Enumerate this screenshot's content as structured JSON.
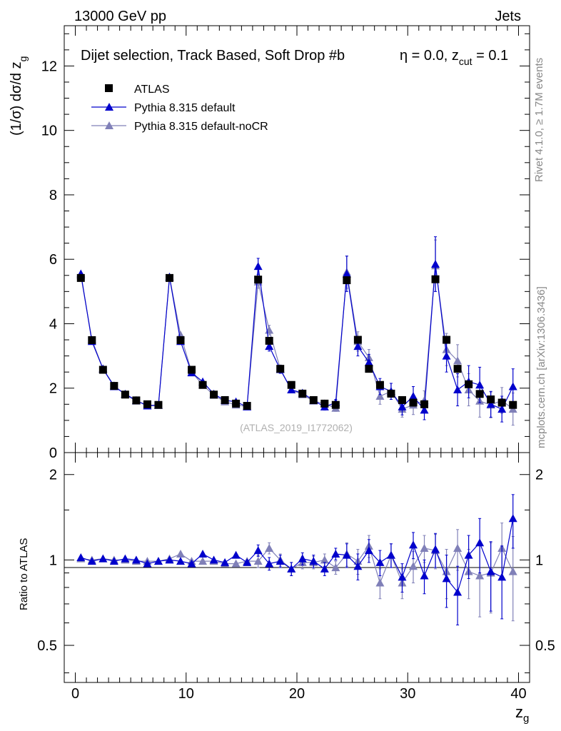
{
  "header": {
    "left": "13000 GeV pp",
    "right": "Jets"
  },
  "title_main": "Dijet selection, Track Based, Soft Drop #b",
  "title_eta": "η = 0.0, z",
  "title_cut_sub": "cut",
  "title_cut_val": " = 0.1",
  "side_top": "Rivet 4.1.0, ≥ 1.7M events",
  "side_bottom": "mcplots.cern.ch [arXiv:1306.3436]",
  "watermark": "(ATLAS_2019_I1772062)",
  "ylabel_main": "(1/σ) dσ/d z",
  "ylabel_main_sub": "g",
  "ylabel_ratio": "Ratio to ATLAS",
  "xlabel": "z",
  "xlabel_sub": "g",
  "legend": {
    "atlas": "ATLAS",
    "pythia": "Pythia 8.315 default",
    "nocr": "Pythia 8.315 default-noCR"
  },
  "colors": {
    "atlas": "#000000",
    "pythia": "#0000cc",
    "nocr": "#8080b8"
  },
  "chart_data": {
    "type": "scatter",
    "x": [
      0.5,
      1.5,
      2.5,
      3.5,
      4.5,
      5.5,
      6.5,
      7.5,
      8.5,
      9.5,
      10.5,
      11.5,
      12.5,
      13.5,
      14.5,
      15.5,
      16.5,
      17.5,
      18.5,
      19.5,
      20.5,
      21.5,
      22.5,
      23.5,
      24.5,
      25.5,
      26.5,
      27.5,
      28.5,
      29.5,
      30.5,
      31.5,
      32.5,
      33.5,
      34.5,
      35.5,
      36.5,
      37.5,
      38.5,
      39.5
    ],
    "xlim": [
      -1,
      41
    ],
    "xticks": [
      0,
      10,
      20,
      30,
      40
    ],
    "main": {
      "ylim": [
        0,
        13.25
      ],
      "yticks": [
        0,
        2,
        4,
        6,
        8,
        10,
        12
      ],
      "series": [
        {
          "name": "ATLAS",
          "values": [
            5.42,
            3.49,
            2.57,
            2.07,
            1.8,
            1.62,
            1.5,
            1.48,
            5.42,
            3.49,
            2.57,
            2.1,
            1.8,
            1.63,
            1.52,
            1.45,
            5.37,
            3.47,
            2.6,
            2.1,
            1.83,
            1.63,
            1.52,
            1.48,
            5.35,
            3.5,
            2.6,
            2.1,
            1.83,
            1.63,
            1.55,
            1.5,
            5.38,
            3.5,
            2.6,
            2.12,
            1.82,
            1.65,
            1.55,
            1.48
          ],
          "errors": [
            0.03,
            0.03,
            0.03,
            0.03,
            0.03,
            0.03,
            0.03,
            0.03,
            0.03,
            0.03,
            0.03,
            0.03,
            0.03,
            0.03,
            0.03,
            0.03,
            0.05,
            0.05,
            0.05,
            0.05,
            0.05,
            0.05,
            0.05,
            0.05,
            0.08,
            0.08,
            0.08,
            0.08,
            0.08,
            0.08,
            0.08,
            0.08,
            0.1,
            0.1,
            0.1,
            0.1,
            0.1,
            0.1,
            0.1,
            0.1
          ]
        },
        {
          "name": "Pythia 8.315 default",
          "values": [
            5.55,
            3.45,
            2.6,
            2.05,
            1.82,
            1.62,
            1.45,
            1.47,
            5.45,
            3.45,
            2.48,
            2.2,
            1.82,
            1.62,
            1.58,
            1.42,
            5.78,
            3.3,
            2.58,
            1.95,
            1.85,
            1.62,
            1.42,
            1.55,
            5.55,
            3.3,
            2.8,
            2.05,
            1.9,
            1.42,
            1.75,
            1.32,
            5.85,
            3.0,
            1.95,
            2.2,
            2.1,
            1.5,
            1.35,
            2.05
          ],
          "errors": [
            0.03,
            0.03,
            0.03,
            0.03,
            0.03,
            0.03,
            0.03,
            0.03,
            0.04,
            0.04,
            0.04,
            0.04,
            0.04,
            0.04,
            0.04,
            0.04,
            0.25,
            0.15,
            0.12,
            0.1,
            0.08,
            0.08,
            0.1,
            0.1,
            0.55,
            0.3,
            0.25,
            0.25,
            0.25,
            0.25,
            0.3,
            0.3,
            0.85,
            0.5,
            0.5,
            0.5,
            0.55,
            0.4,
            0.4,
            0.55
          ]
        },
        {
          "name": "Pythia 8.315 default-noCR",
          "values": [
            5.5,
            3.5,
            2.6,
            2.08,
            1.8,
            1.6,
            1.48,
            1.47,
            5.45,
            3.65,
            2.5,
            2.1,
            1.78,
            1.58,
            1.48,
            1.43,
            5.3,
            3.8,
            2.6,
            1.95,
            1.8,
            1.6,
            1.52,
            1.38,
            5.6,
            3.45,
            2.95,
            1.75,
            1.9,
            1.35,
            1.48,
            1.62,
            5.8,
            3.2,
            2.85,
            1.95,
            1.6,
            1.48,
            1.62,
            1.35
          ],
          "errors": [
            0.03,
            0.03,
            0.03,
            0.03,
            0.03,
            0.03,
            0.03,
            0.03,
            0.04,
            0.04,
            0.04,
            0.04,
            0.04,
            0.04,
            0.04,
            0.04,
            0.2,
            0.15,
            0.12,
            0.1,
            0.08,
            0.08,
            0.1,
            0.1,
            0.5,
            0.3,
            0.25,
            0.25,
            0.25,
            0.25,
            0.3,
            0.3,
            0.8,
            0.5,
            0.5,
            0.5,
            0.5,
            0.4,
            0.4,
            0.5
          ]
        }
      ]
    },
    "ratio": {
      "ylim": [
        0.37,
        2.39
      ],
      "yticks": [
        0.5,
        1,
        2
      ],
      "ytick_labels": [
        "0.5",
        "1",
        "2"
      ],
      "series": [
        {
          "name": "Pythia 8.315 default",
          "values": [
            1.02,
            0.99,
            1.01,
            0.99,
            1.01,
            1.0,
            0.97,
            0.99,
            1.0,
            0.99,
            0.97,
            1.05,
            1.0,
            0.98,
            1.04,
            0.98,
            1.08,
            0.97,
            0.99,
            0.93,
            1.01,
            0.99,
            0.93,
            1.05,
            1.04,
            0.95,
            1.08,
            0.98,
            1.04,
            0.87,
            1.13,
            0.88,
            1.09,
            0.86,
            0.77,
            1.04,
            1.15,
            0.91,
            0.87,
            1.4
          ],
          "errors": [
            0.01,
            0.01,
            0.01,
            0.01,
            0.01,
            0.01,
            0.01,
            0.01,
            0.01,
            0.01,
            0.01,
            0.01,
            0.01,
            0.01,
            0.01,
            0.01,
            0.05,
            0.05,
            0.05,
            0.05,
            0.05,
            0.05,
            0.05,
            0.05,
            0.1,
            0.1,
            0.1,
            0.1,
            0.1,
            0.1,
            0.12,
            0.12,
            0.15,
            0.18,
            0.18,
            0.18,
            0.25,
            0.25,
            0.25,
            0.3
          ]
        },
        {
          "name": "Pythia 8.315 default-noCR",
          "values": [
            1.01,
            1.0,
            1.01,
            1.0,
            1.0,
            0.99,
            0.99,
            0.99,
            1.01,
            1.05,
            0.99,
            0.99,
            0.99,
            0.97,
            0.97,
            0.99,
            0.99,
            1.1,
            1.0,
            0.93,
            0.98,
            0.98,
            1.0,
            0.94,
            1.05,
            0.99,
            1.12,
            0.83,
            1.04,
            0.83,
            0.95,
            1.1,
            1.08,
            0.91,
            1.1,
            0.91,
            0.88,
            0.9,
            1.1,
            0.91
          ],
          "errors": [
            0.01,
            0.01,
            0.01,
            0.01,
            0.01,
            0.01,
            0.01,
            0.01,
            0.01,
            0.01,
            0.01,
            0.01,
            0.01,
            0.01,
            0.01,
            0.01,
            0.05,
            0.05,
            0.05,
            0.05,
            0.05,
            0.05,
            0.05,
            0.05,
            0.1,
            0.1,
            0.1,
            0.1,
            0.1,
            0.1,
            0.12,
            0.12,
            0.15,
            0.18,
            0.18,
            0.18,
            0.25,
            0.25,
            0.25,
            0.3
          ]
        }
      ]
    }
  }
}
